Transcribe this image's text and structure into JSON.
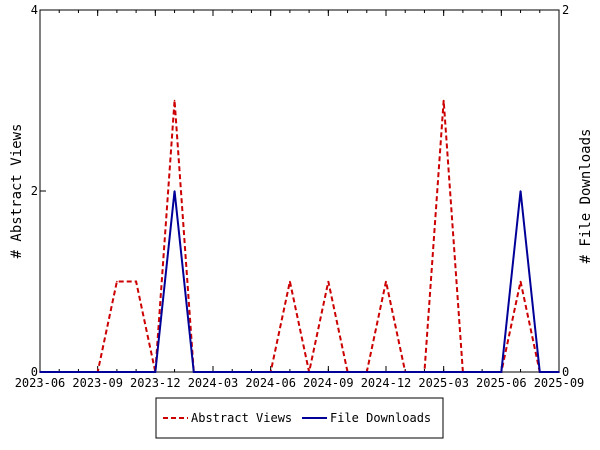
{
  "chart_data": {
    "type": "line",
    "title": "",
    "xlabel": "",
    "ylabel": "# Abstract Views",
    "y2label": "# File Downloads",
    "x_tick_labels": [
      "2023-06",
      "2023-09",
      "2023-12",
      "2024-03",
      "2024-06",
      "2024-09",
      "2024-12",
      "2025-03",
      "2025-06",
      "2025-09"
    ],
    "x_range": [
      "2023-06",
      "2025-09"
    ],
    "months": [
      "2023-06",
      "2023-07",
      "2023-08",
      "2023-09",
      "2023-10",
      "2023-11",
      "2023-12",
      "2024-01",
      "2024-02",
      "2024-03",
      "2024-04",
      "2024-05",
      "2024-06",
      "2024-07",
      "2024-08",
      "2024-09",
      "2024-10",
      "2024-11",
      "2024-12",
      "2025-01",
      "2025-02",
      "2025-03",
      "2025-04",
      "2025-05",
      "2025-06",
      "2025-07",
      "2025-08",
      "2025-09"
    ],
    "ylim": [
      0,
      4
    ],
    "y_ticks": [
      0,
      2,
      4
    ],
    "y2lim": [
      0,
      2
    ],
    "y2_ticks": [
      0,
      2
    ],
    "grid": false,
    "legend_position": "bottom-center",
    "series": [
      {
        "name": "Abstract Views",
        "axis": "left",
        "color": "#cc0000",
        "style": "dashed",
        "values": [
          0,
          0,
          0,
          0,
          1,
          1,
          0,
          3,
          0,
          0,
          0,
          0,
          0,
          1,
          0,
          1,
          0,
          0,
          1,
          0,
          0,
          3,
          0,
          0,
          0,
          1,
          0,
          0
        ]
      },
      {
        "name": "File Downloads",
        "axis": "right",
        "color": "#000099",
        "style": "solid",
        "values": [
          0,
          0,
          0,
          0,
          0,
          0,
          0,
          1,
          0,
          0,
          0,
          0,
          0,
          0,
          0,
          0,
          0,
          0,
          0,
          0,
          0,
          0,
          0,
          0,
          0,
          1,
          0,
          0
        ]
      }
    ]
  }
}
